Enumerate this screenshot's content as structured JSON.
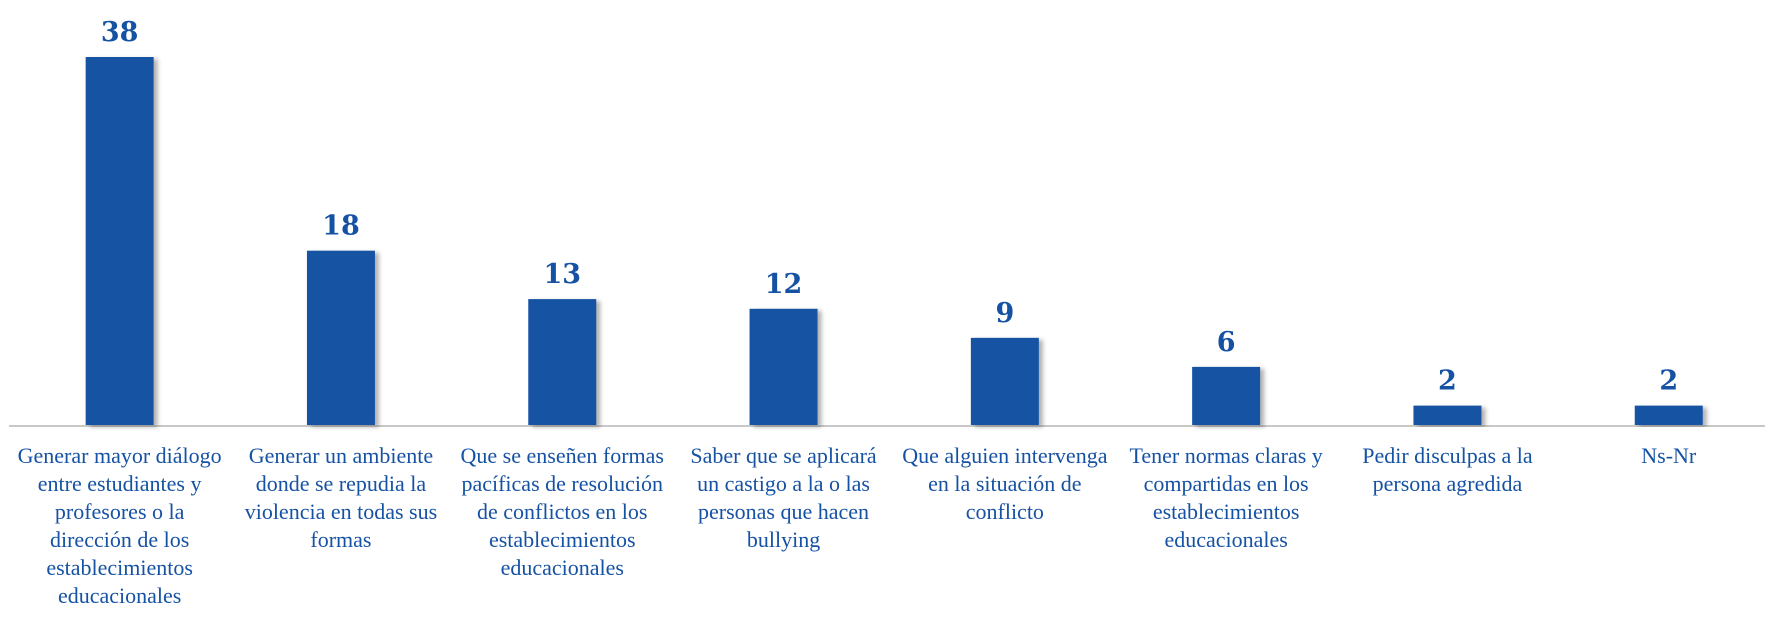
{
  "chart_data": {
    "type": "bar",
    "categories": [
      "Generar mayor diálogo entre estudiantes y profesores o la dirección de los establecimientos educacionales",
      "Generar un ambiente donde se repudia la violencia en todas sus formas",
      "Que se enseñen formas pacíficas de resolución de conflictos en los establecimientos educacionales",
      "Saber que se aplicará un castigo a la o las personas que hacen bullying",
      "Que alguien intervenga en la situación de conflicto",
      "Tener normas claras y compartidas en los establecimientos educacionales",
      "Pedir disculpas a la persona agredida",
      "Ns-Nr"
    ],
    "values": [
      38,
      18,
      13,
      12,
      9,
      6,
      2,
      2
    ],
    "color": "#1652a3"
  }
}
